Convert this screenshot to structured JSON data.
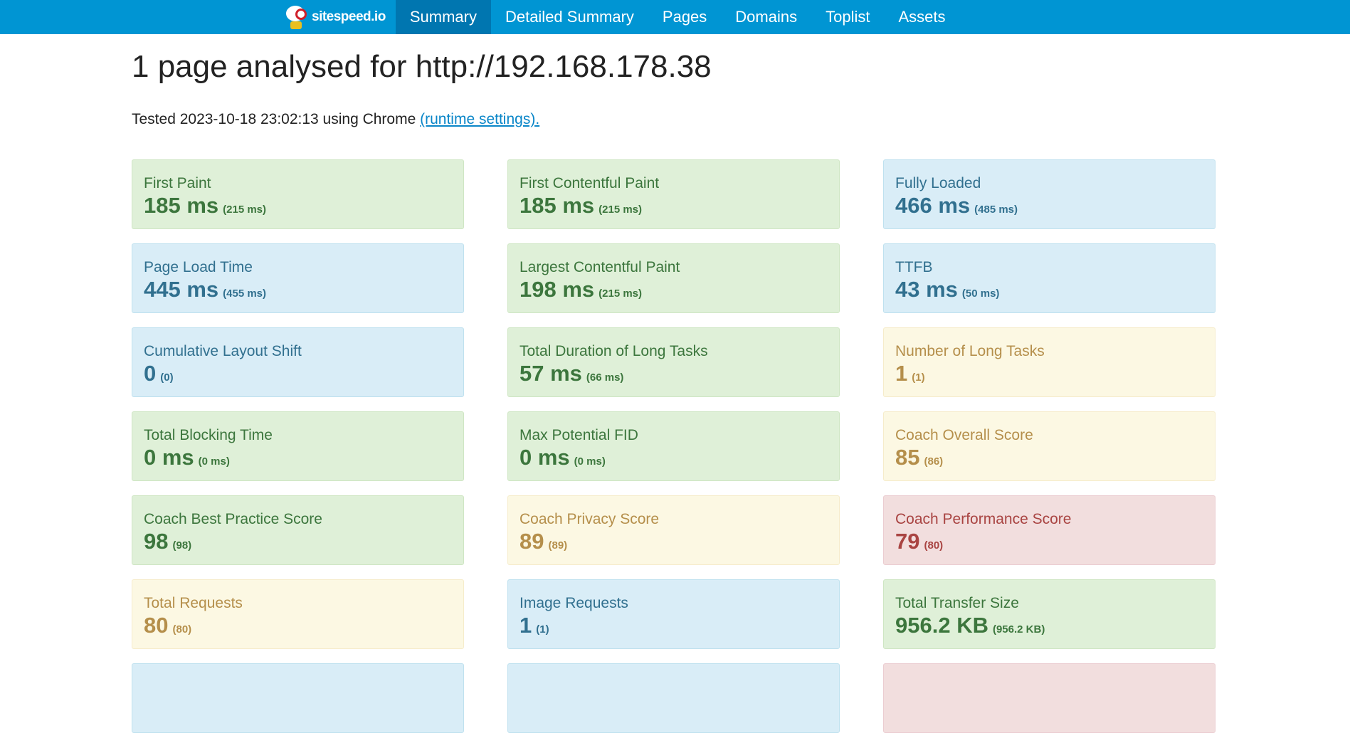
{
  "nav": {
    "brand": "sitespeed.io",
    "items": [
      "Summary",
      "Detailed Summary",
      "Pages",
      "Domains",
      "Toplist",
      "Assets"
    ],
    "active": "Summary",
    "color": "#0095d3"
  },
  "title": "1 page analysed for http://192.168.178.38",
  "tested": {
    "text": "Tested 2023-10-18 23:02:13 using Chrome ",
    "link": "(runtime settings)."
  },
  "cards": [
    {
      "label": "First Paint",
      "value": "185 ms",
      "sub": "(215 ms)",
      "status": "green"
    },
    {
      "label": "First Contentful Paint",
      "value": "185 ms",
      "sub": "(215 ms)",
      "status": "green"
    },
    {
      "label": "Fully Loaded",
      "value": "466 ms",
      "sub": "(485 ms)",
      "status": "blue"
    },
    {
      "label": "Page Load Time",
      "value": "445 ms",
      "sub": "(455 ms)",
      "status": "blue"
    },
    {
      "label": "Largest Contentful Paint",
      "value": "198 ms",
      "sub": "(215 ms)",
      "status": "green"
    },
    {
      "label": "TTFB",
      "value": "43 ms",
      "sub": "(50 ms)",
      "status": "blue"
    },
    {
      "label": "Cumulative Layout Shift",
      "value": "0",
      "sub": "(0)",
      "status": "blue"
    },
    {
      "label": "Total Duration of Long Tasks",
      "value": "57 ms",
      "sub": "(66 ms)",
      "status": "green"
    },
    {
      "label": "Number of Long Tasks",
      "value": "1",
      "sub": "(1)",
      "status": "yellow"
    },
    {
      "label": "Total Blocking Time",
      "value": "0 ms",
      "sub": "(0 ms)",
      "status": "green"
    },
    {
      "label": "Max Potential FID",
      "value": "0 ms",
      "sub": "(0 ms)",
      "status": "green"
    },
    {
      "label": "Coach Overall Score",
      "value": "85",
      "sub": "(86)",
      "status": "yellow"
    },
    {
      "label": "Coach Best Practice Score",
      "value": "98",
      "sub": "(98)",
      "status": "green"
    },
    {
      "label": "Coach Privacy Score",
      "value": "89",
      "sub": "(89)",
      "status": "yellow"
    },
    {
      "label": "Coach Performance Score",
      "value": "79",
      "sub": "(80)",
      "status": "red"
    },
    {
      "label": "Total Requests",
      "value": "80",
      "sub": "(80)",
      "status": "yellow"
    },
    {
      "label": "Image Requests",
      "value": "1",
      "sub": "(1)",
      "status": "blue"
    },
    {
      "label": "Total Transfer Size",
      "value": "956.2 KB",
      "sub": "(956.2 KB)",
      "status": "green"
    },
    {
      "status": "blue"
    },
    {
      "status": "blue"
    },
    {
      "status": "red"
    }
  ]
}
